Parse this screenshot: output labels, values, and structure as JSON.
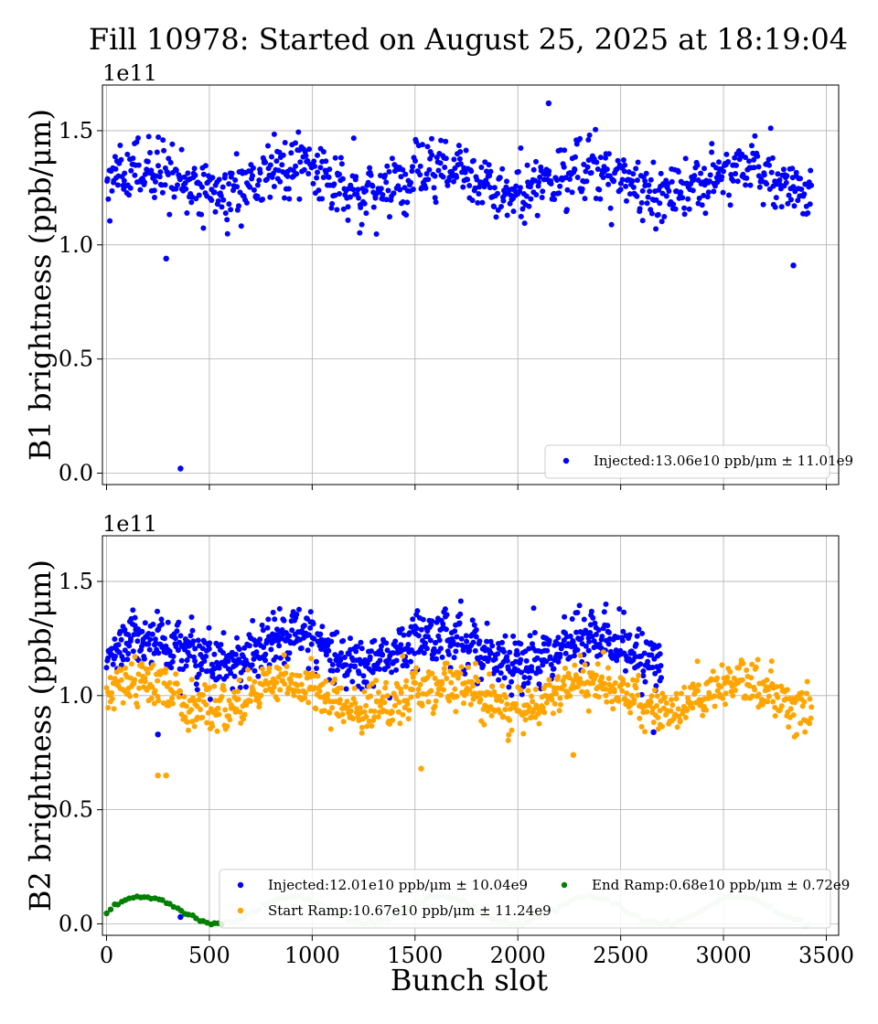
{
  "title": "Fill 10978: Started on August 25, 2025 at 18:19:04",
  "xlabel": "Bunch slot",
  "colors": {
    "injected": "#0000ff",
    "start_ramp": "#ffa500",
    "end_ramp": "#008000",
    "end_ramp_faded": "#c6e2c6"
  },
  "chart_data": [
    {
      "type": "scatter",
      "panel": "top",
      "ylabel": "B1 brightness (ppb/μm)",
      "offset_text": "1e11",
      "xlim": [
        -20,
        3560
      ],
      "ylim": [
        -0.05,
        1.7
      ],
      "xticks": [
        0,
        500,
        1000,
        1500,
        2000,
        2500,
        3000,
        3500
      ],
      "yticks": [
        0.0,
        0.5,
        1.0,
        1.5
      ],
      "ytick_labels": [
        "0.0",
        "0.5",
        "1.0",
        "1.5"
      ],
      "grid": true,
      "legend_position": "lower-right",
      "series": [
        {
          "name": "Injected:13.06e10 ppb/μm ± 11.01e9",
          "color": "#0000ff",
          "x_range": [
            0,
            3430
          ],
          "mean": 1.28,
          "spread": 0.1,
          "outliers": [
            [
              360,
              0.02
            ],
            [
              290,
              0.94
            ],
            [
              3340,
              0.91
            ],
            [
              2150,
              1.62
            ]
          ]
        }
      ]
    },
    {
      "type": "scatter",
      "panel": "bottom",
      "ylabel": "B2 brightness (ppb/μm)",
      "offset_text": "1e11",
      "xlim": [
        -20,
        3560
      ],
      "ylim": [
        -0.05,
        1.7
      ],
      "xticks": [
        0,
        500,
        1000,
        1500,
        2000,
        2500,
        3000,
        3500
      ],
      "xtick_labels": [
        "0",
        "500",
        "1000",
        "1500",
        "2000",
        "2500",
        "3000",
        "3500"
      ],
      "yticks": [
        0.0,
        0.5,
        1.0,
        1.5
      ],
      "ytick_labels": [
        "0.0",
        "0.5",
        "1.0",
        "1.5"
      ],
      "grid": true,
      "legend_position": "lower-right",
      "series": [
        {
          "name": "Injected:12.01e10 ppb/μm ± 10.04e9",
          "color": "#0000ff",
          "x_range": [
            0,
            2700
          ],
          "mean": 1.2,
          "spread": 0.09,
          "outliers": [
            [
              360,
              0.03
            ],
            [
              250,
              0.83
            ],
            [
              2660,
              0.84
            ]
          ]
        },
        {
          "name": "Start Ramp:10.67e10 ppb/μm ± 11.24e9",
          "color": "#ffa500",
          "x_range": [
            0,
            3430
          ],
          "mean": 1.0,
          "spread": 0.08,
          "outliers": [
            [
              250,
              0.65
            ],
            [
              290,
              0.65
            ],
            [
              1530,
              0.68
            ],
            [
              2270,
              0.74
            ]
          ]
        },
        {
          "name": "End Ramp:0.68e10 ppb/μm ± 0.72e9",
          "color": "#008000",
          "x_range": [
            0,
            3430
          ],
          "mean": 0.06,
          "spread": 0.008,
          "bright_until": 560
        }
      ]
    }
  ]
}
